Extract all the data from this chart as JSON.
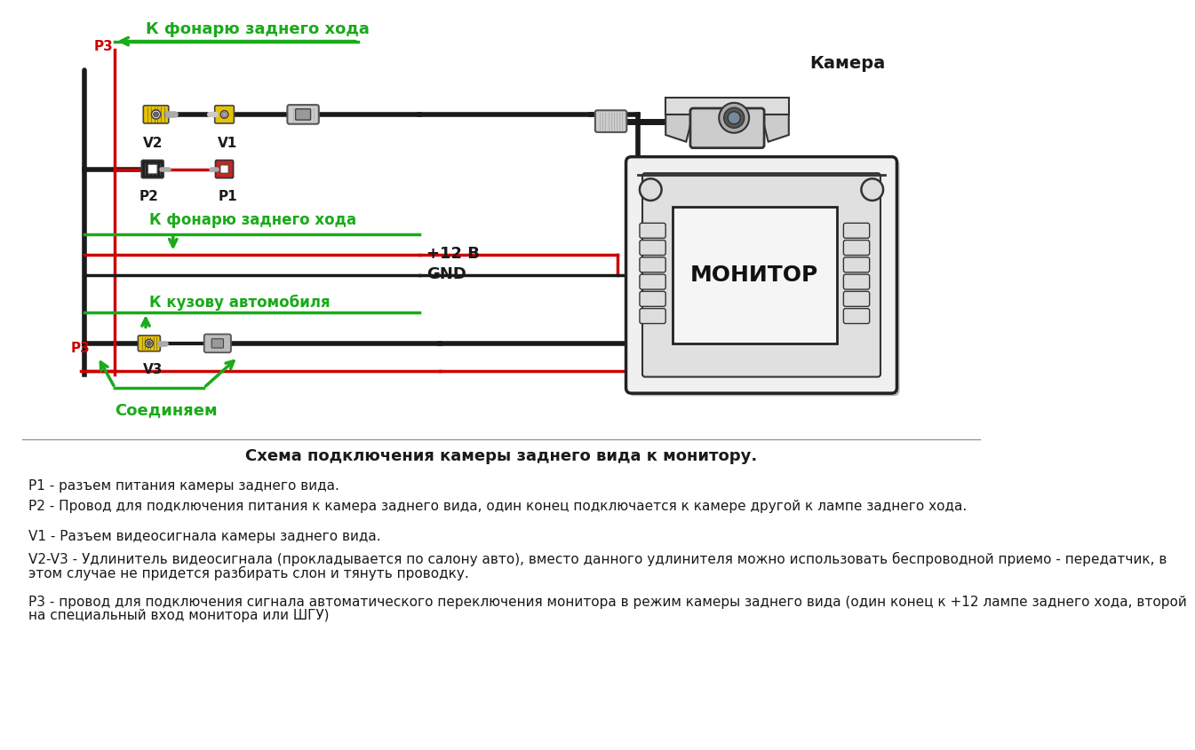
{
  "bg_color": "#ffffff",
  "title": "Схема подключения камеры заднего вида к монитору.",
  "label_p1": "P1",
  "label_p2": "P2",
  "label_v1": "V1",
  "label_v2": "V2",
  "label_v3": "V3",
  "label_p3": "P3",
  "label_camera": "Камера",
  "label_monitor": "МОНИТОР",
  "label_k_fonarju": "К фонарю заднего хода",
  "label_k_kuzovu": "К кузову автомобиля",
  "label_soedinjaem": "Соединяем",
  "label_12v": "+12 В",
  "label_gnd": "GND",
  "text_p1": "P1 - разъем питания камеры заднего вида.",
  "text_p2": "P2 - Провод для подключения питания к камера заднего вида, один конец подключается к камере другой к лампе заднего хода.",
  "text_v1": "V1 - Разъем видеосигнала камеры заднего вида.",
  "text_v2v3_1": "V2-V3 - Удлинитель видеосигнала (прокладывается по салону авто), вместо данного удлинителя можно использовать беспроводной приемо - передатчик, в",
  "text_v2v3_2": "этом случае не придется разбирать слон и тянуть проводку.",
  "text_p3_1": "P3 - провод для подключения сигнала автоматического переключения монитора в режим камеры заднего вида (один конец к +12 лампе заднего хода, второй",
  "text_p3_2": "на специальный вход монитора или ШГУ)",
  "color_green": "#1aaa1a",
  "color_red": "#cc0000",
  "color_black": "#1a1a1a",
  "color_yellow": "#e8c200",
  "color_gray_conn": "#bbbbbb",
  "color_dark_gray": "#555555"
}
